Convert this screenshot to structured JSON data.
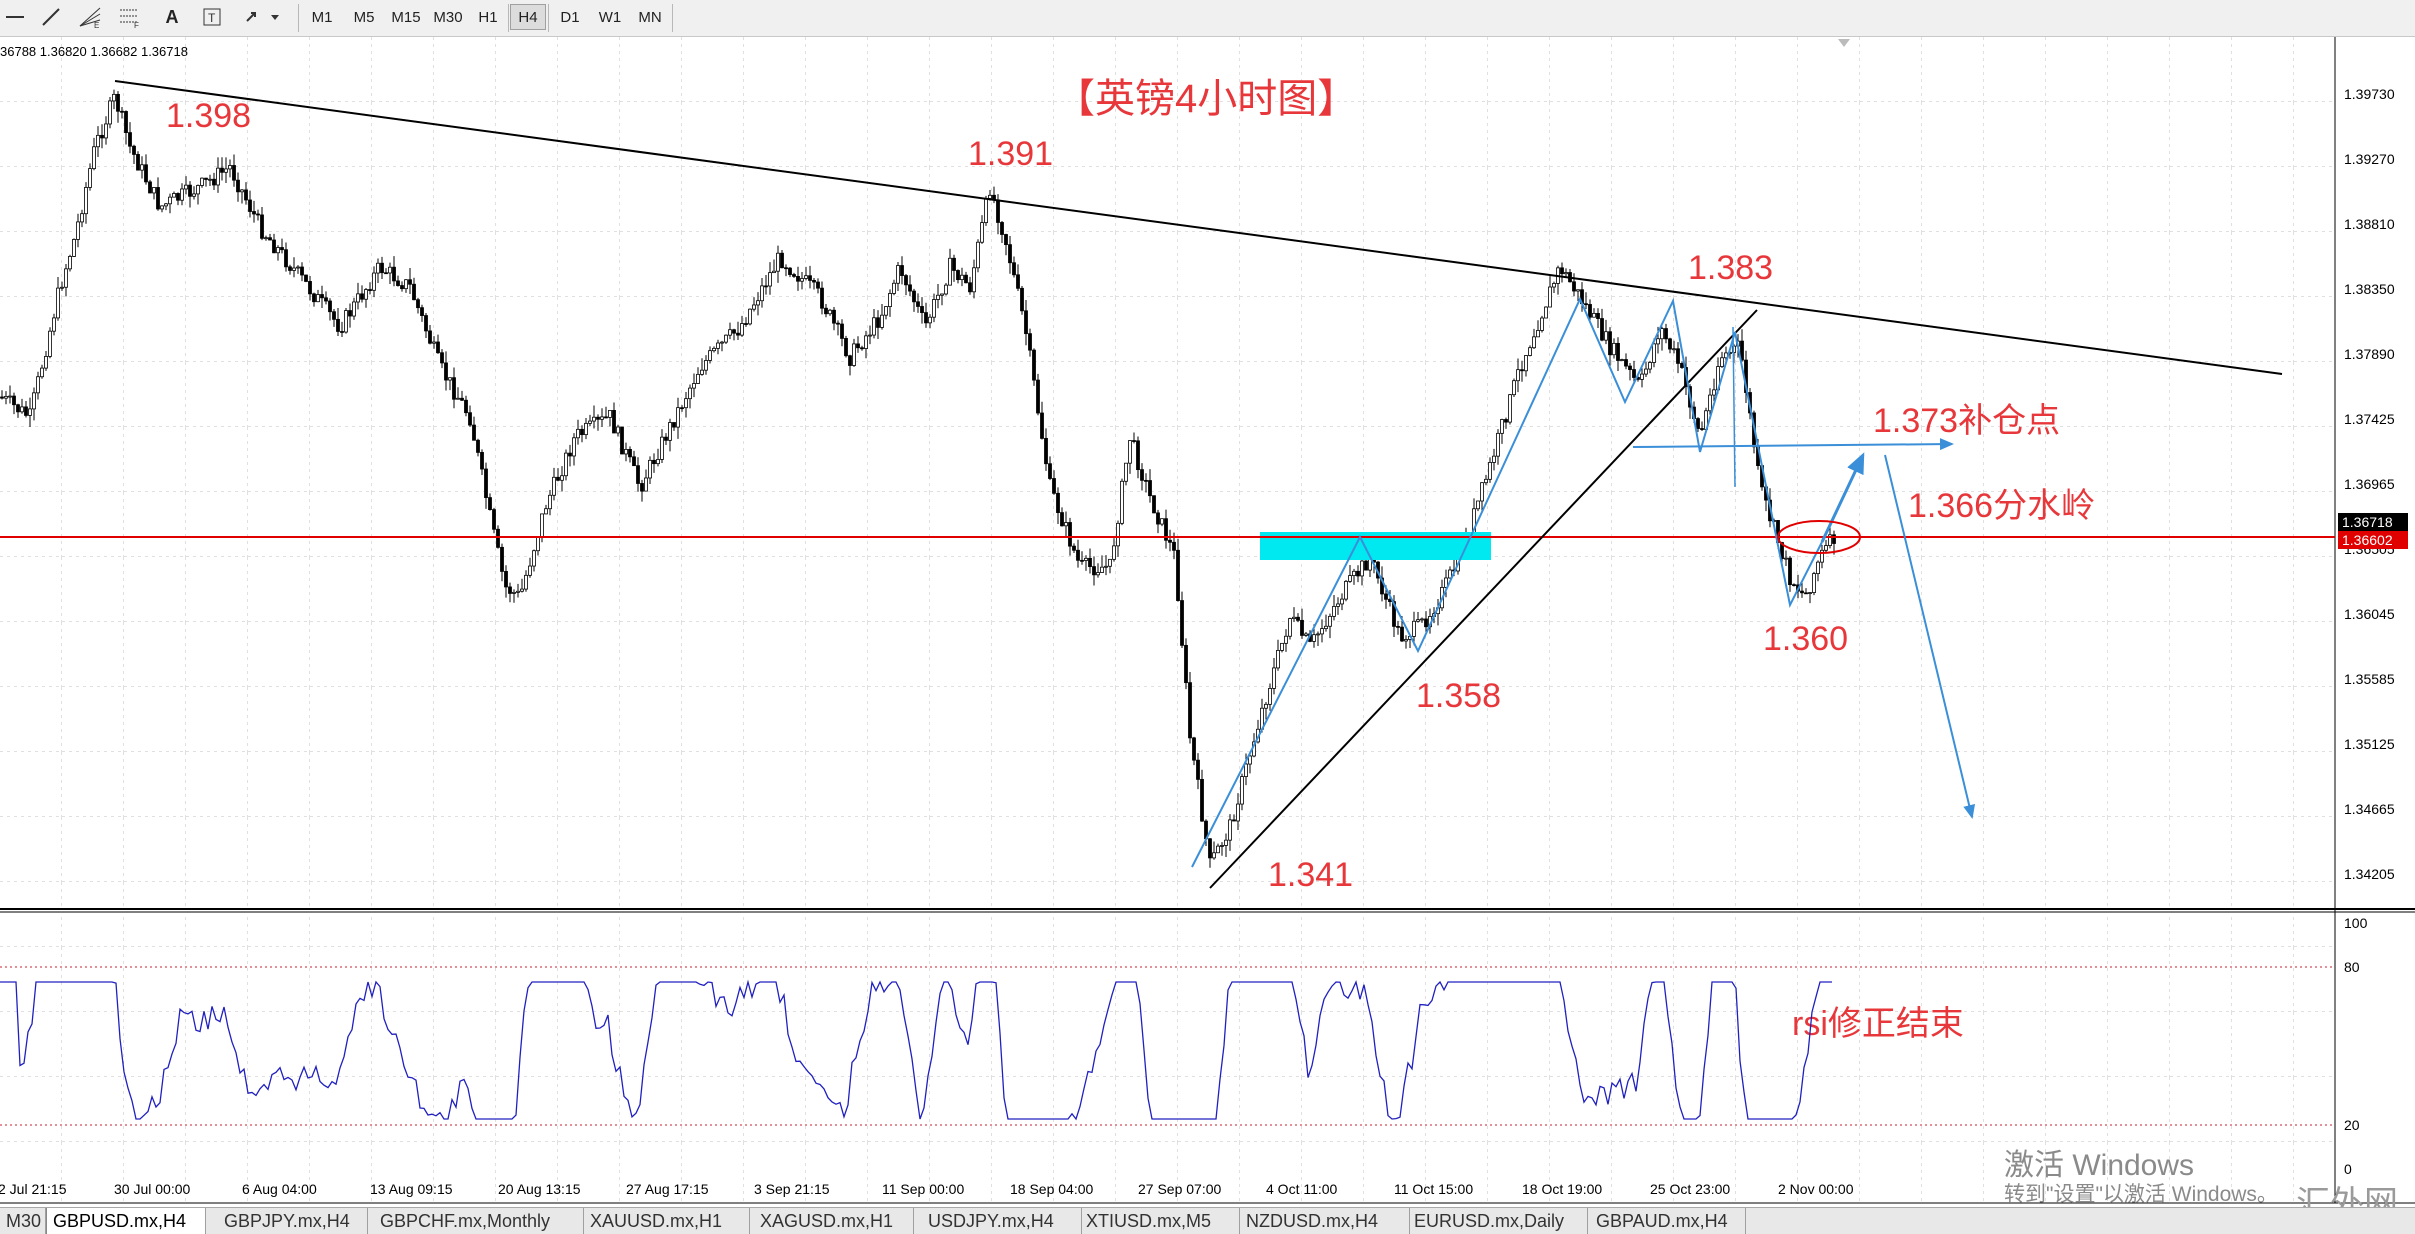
{
  "toolbar": {
    "timeframes": [
      "M1",
      "M5",
      "M15",
      "M30",
      "H1",
      "H4",
      "D1",
      "W1",
      "MN"
    ],
    "active_timeframe": "H4",
    "tools": [
      "cursor-icon",
      "trendline-icon",
      "fibonacci-fan-icon",
      "fibonacci-retracement-icon",
      "text-icon",
      "text-label-icon",
      "arrows-icon"
    ]
  },
  "chart": {
    "ohlc_readout": "36788 1.36820 1.36682 1.36718",
    "title": "【英镑4小时图】",
    "annotations": {
      "a1398": "1.398",
      "a1391": "1.391",
      "a1383": "1.383",
      "a1373": "1.373补仓点",
      "a1366": "1.366分水岭",
      "a1360": "1.360",
      "a1358": "1.358",
      "a1341": "1.341",
      "rsi": "rsi修正结束"
    },
    "price_axis": [
      "1.39730",
      "1.39270",
      "1.38810",
      "1.38350",
      "1.37890",
      "1.37425",
      "1.36965",
      "1.36505",
      "1.36045",
      "1.35585",
      "1.35125",
      "1.34665",
      "1.34205"
    ],
    "current_price": "1.36718",
    "line_price": "1.36602",
    "rsi_axis": [
      "100",
      "80",
      "20",
      "0"
    ],
    "time_axis": [
      "2 Jul 21:15",
      "30 Jul 00:00",
      "6 Aug 04:00",
      "13 Aug 09:15",
      "20 Aug 13:15",
      "27 Aug 17:15",
      "3 Sep 21:15",
      "11 Sep 00:00",
      "18 Sep 04:00",
      "27 Sep 07:00",
      "4 Oct 11:00",
      "11 Oct 15:00",
      "18 Oct 19:00",
      "25 Oct 23:00",
      "2 Nov 00:00"
    ]
  },
  "colors": {
    "candle": "#000000",
    "annotation": "#e8373a",
    "path_blue": "#3a8fd8",
    "zone": "#00e8f0",
    "support_line": "#e00000",
    "rsi_line": "#2020c0",
    "rsi_level": "#c82030"
  },
  "tabs": [
    "M30",
    "GBPUSD.mx,H4",
    "GBPJPY.mx,H4",
    "GBPCHF.mx,Monthly",
    "XAUUSD.mx,H1",
    "XAGUSD.mx,H1",
    "USDJPY.mx,H4",
    "XTIUSD.mx,M5",
    "NZDUSD.mx,H4",
    "EURUSD.mx,Daily",
    "GBPAUD.mx,H4"
  ],
  "active_tab": "GBPUSD.mx,H4",
  "watermark": {
    "line1": "激活 Windows",
    "line2": "转到\"设置\"以激活 Windows。",
    "site": "汇外网"
  }
}
